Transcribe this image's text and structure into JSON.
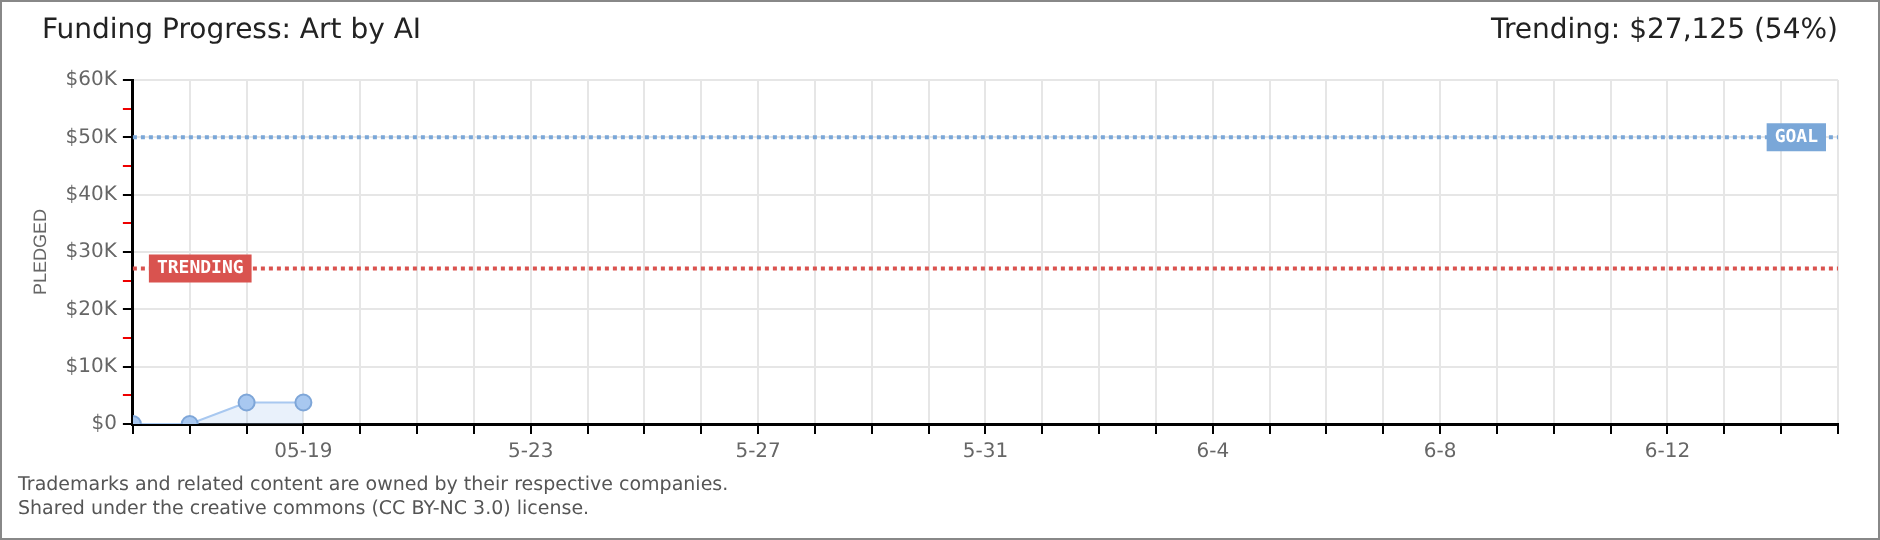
{
  "chart_data": {
    "type": "area",
    "title": "Funding Progress: Art by AI",
    "subtitle": "Trending: $27,125 (54%)",
    "ylabel": "PLEDGED",
    "x": [
      "--05-16",
      "--05-17",
      "--05-18",
      "--05-19"
    ],
    "series": [
      {
        "color": "#a8c8f0",
        "values": [
          0,
          0,
          3750,
          3750
        ]
      }
    ],
    "marker": "circle",
    "grid": true,
    "legend": false,
    "xlim": [
      "--05-16",
      "--06-15"
    ],
    "xticks": [
      {
        "value": "--05-16",
        "label": null
      },
      {
        "value": "--05-17",
        "label": null
      },
      {
        "value": "--05-18",
        "label": null
      },
      {
        "value": "--05-19",
        "label": "05-19"
      },
      {
        "value": "--05-20",
        "label": null
      },
      {
        "value": "--05-21",
        "label": null
      },
      {
        "value": "--05-22",
        "label": null
      },
      {
        "value": "--05-23",
        "label": "5-23"
      },
      {
        "value": "--05-24",
        "label": null
      },
      {
        "value": "--05-25",
        "label": null
      },
      {
        "value": "--05-26",
        "label": null
      },
      {
        "value": "--05-27",
        "label": "5-27"
      },
      {
        "value": "--05-28",
        "label": null
      },
      {
        "value": "--05-29",
        "label": null
      },
      {
        "value": "--05-30",
        "label": null
      },
      {
        "value": "--05-31",
        "label": "5-31"
      },
      {
        "value": "--06-01",
        "label": null
      },
      {
        "value": "--06-02",
        "label": null
      },
      {
        "value": "--06-03",
        "label": null
      },
      {
        "value": "--06-04",
        "label": "6-4"
      },
      {
        "value": "--06-05",
        "label": null
      },
      {
        "value": "--06-06",
        "label": null
      },
      {
        "value": "--06-07",
        "label": null
      },
      {
        "value": "--06-08",
        "label": "6-8"
      },
      {
        "value": "--06-09",
        "label": null
      },
      {
        "value": "--06-10",
        "label": null
      },
      {
        "value": "--06-11",
        "label": null
      },
      {
        "value": "--06-12",
        "label": "6-12"
      },
      {
        "value": "--06-13",
        "label": null
      },
      {
        "value": "--06-14",
        "label": null
      },
      {
        "value": "--06-15",
        "label": null
      }
    ],
    "ylim": [
      0,
      60000
    ],
    "yticks": [
      {
        "value": 0,
        "label": "$0"
      },
      {
        "value": 5000,
        "label": null
      },
      {
        "value": 10000,
        "label": "$10K"
      },
      {
        "value": 15000,
        "label": null
      },
      {
        "value": 20000,
        "label": "$20K"
      },
      {
        "value": 25000,
        "label": null
      },
      {
        "value": 30000,
        "label": "$30K"
      },
      {
        "value": 35000,
        "label": null
      },
      {
        "value": 40000,
        "label": "$40K"
      },
      {
        "value": 45000,
        "label": null
      },
      {
        "value": 50000,
        "label": "$50K"
      },
      {
        "value": 55000,
        "label": null
      },
      {
        "value": 60000,
        "label": "$60K"
      }
    ],
    "ref_lines": [
      {
        "axis": "y",
        "value": 50000,
        "label": "GOAL",
        "color": "#7aa7d8",
        "line_style": "dotted"
      },
      {
        "axis": "y",
        "value": 27125,
        "label": "TRENDING",
        "color": "#d9534f",
        "line_style": "dotted"
      }
    ],
    "annotations": [
      "Trademarks and related content are owned by their respective companies.",
      "Shared under the creative commons (CC BY-NC 3.0) license."
    ]
  }
}
